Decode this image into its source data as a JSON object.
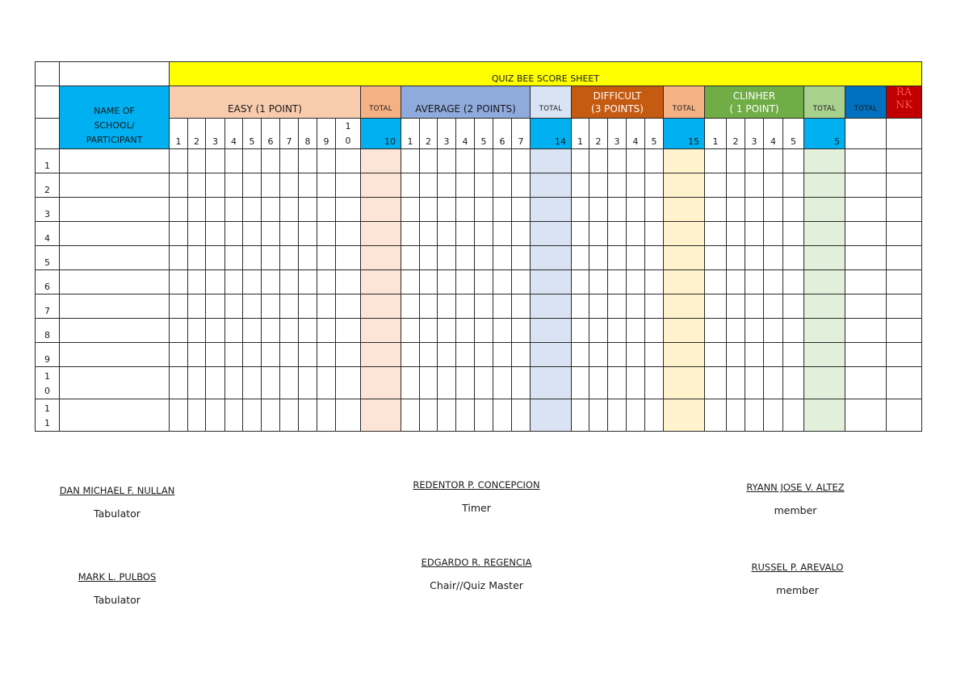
{
  "document": {
    "title": "QUIZ BEE SCORE SHEET",
    "name_header": "NAME OF SCHOOL/ PARTICIPANT",
    "categories": [
      {
        "key": "easy",
        "label": "EASY (1 POINT)",
        "questions": [
          "1",
          "2",
          "3",
          "4",
          "5",
          "6",
          "7",
          "8",
          "9",
          "10"
        ],
        "total_label": "TOTAL",
        "total_value": "10",
        "color": "#f8cbad",
        "total_color": "#f4b183",
        "cell_color": "#fce4d6"
      },
      {
        "key": "average",
        "label": "AVERAGE (2 POINTS)",
        "questions": [
          "1",
          "2",
          "3",
          "4",
          "5",
          "6",
          "7"
        ],
        "total_label": "TOTAL",
        "total_value": "14",
        "color": "#8faadc",
        "total_color": "#dae3f3",
        "cell_color": "#dae3f3"
      },
      {
        "key": "difficult",
        "label": "DIFFICULT (3 POINTS)",
        "questions": [
          "1",
          "2",
          "3",
          "4",
          "5"
        ],
        "total_label": "TOTAL",
        "total_value": "15",
        "color": "#c55a11",
        "total_color": "#f4b183",
        "cell_color": "#fff2cc"
      },
      {
        "key": "clincher",
        "label": "CLINHER ( 1 POINT)",
        "questions": [
          "1",
          "2",
          "3",
          "4",
          "5"
        ],
        "total_label": "TOTAL",
        "total_value": "5",
        "color": "#70ad47",
        "total_color": "#a9d18e",
        "cell_color": "#e2efda"
      }
    ],
    "grand_total_label": "TOTAL",
    "rank_label": "RANK",
    "rows": [
      "1",
      "2",
      "3",
      "4",
      "5",
      "6",
      "7",
      "8",
      "9",
      "10",
      "11"
    ],
    "colors": {
      "title_bg": "#ffff00",
      "name_bg": "#00b0f0",
      "total_value_bg": "#00b0f0",
      "grand_total_bg": "#0070c0",
      "rank_bg": "#c00000"
    }
  },
  "signatories": [
    {
      "name": "DAN MICHAEL F. NULLAN",
      "role": "Tabulator"
    },
    {
      "name": "MARK L. PULBOS",
      "role": "Tabulator"
    },
    {
      "name": "REDENTOR P. CONCEPCION",
      "role": "Timer"
    },
    {
      "name": "EDGARDO R. REGENCIA",
      "role": "Chair//Quiz Master"
    },
    {
      "name": "RYANN JOSE V. ALTEZ",
      "role": "member"
    },
    {
      "name": "RUSSEL P. AREVALO",
      "role": "member"
    }
  ],
  "labels": {
    "easy_1": "EASY (1 POINT)",
    "avg_1": "AVERAGE (2 POINTS)",
    "diff_1": "DIFFICULT",
    "diff_2": "(3 POINTS)",
    "clin_1": "CLINHER",
    "clin_2": "( 1 POINT)",
    "total": "TOTAL",
    "rank_1": "RA",
    "rank_2": "NK",
    "name_1": "NAME OF",
    "name_2": "SCHOOL/",
    "name_3": "PARTICIPANT"
  }
}
